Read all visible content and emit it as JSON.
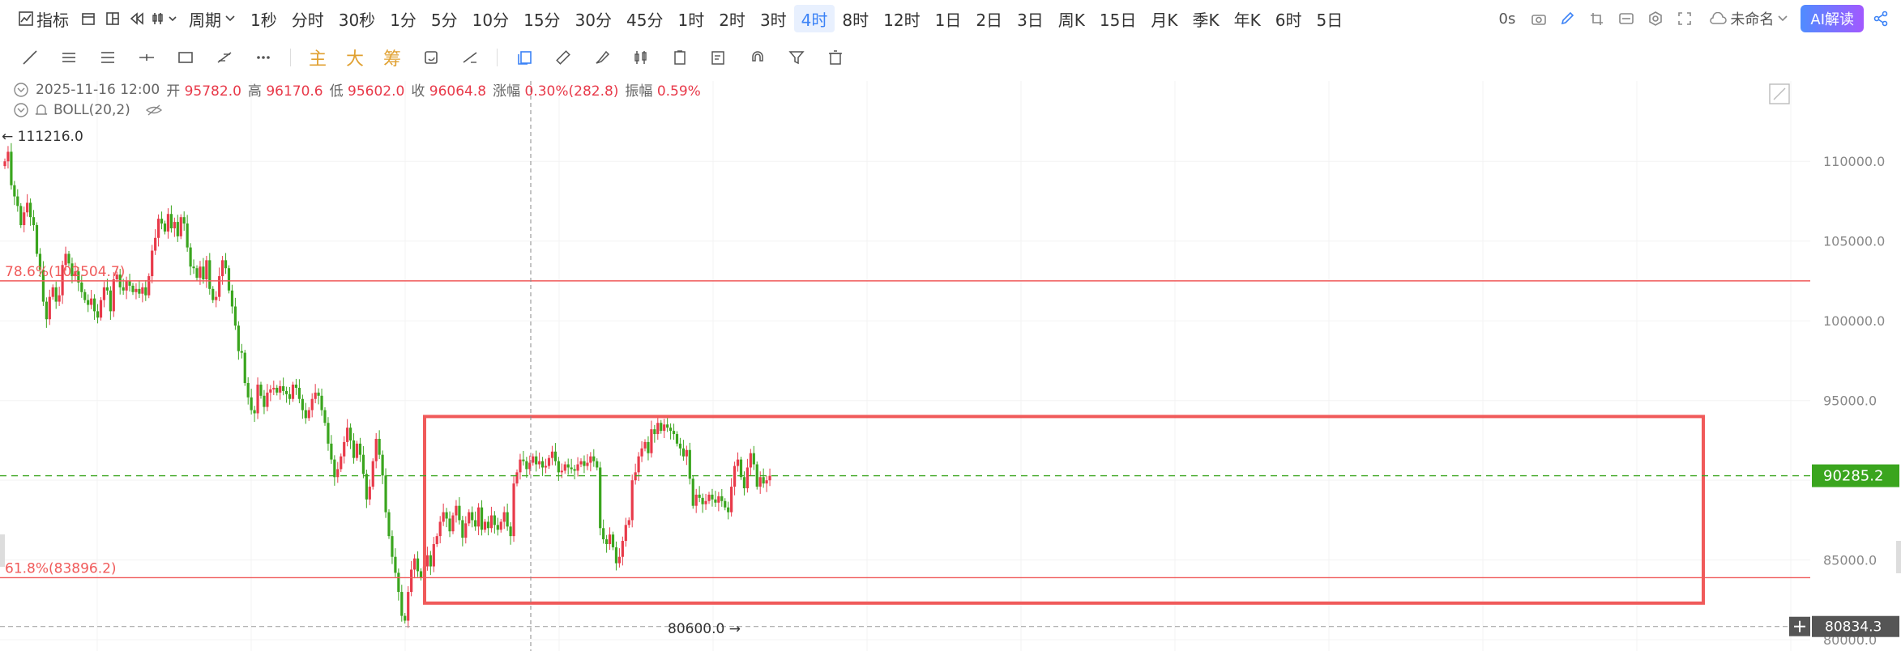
{
  "topbar": {
    "indicator_label": "指标",
    "period_label": "周期",
    "timeframes": [
      "1秒",
      "分时",
      "30秒",
      "1分",
      "5分",
      "10分",
      "15分",
      "30分",
      "45分",
      "1时",
      "2时",
      "3时",
      "4时",
      "8时",
      "12时",
      "1日",
      "2日",
      "3日",
      "周K",
      "15日",
      "月K",
      "季K",
      "年K",
      "6时",
      "5日"
    ],
    "active_timeframe": "4时",
    "latency": "0s",
    "workspace_name": "未命名",
    "ai_button": "AI解读"
  },
  "toolbar2": {
    "text_tools": [
      "主",
      "大",
      "筹"
    ]
  },
  "ohlc_info": {
    "datetime": "2025-11-16 12:00",
    "open_label": "开",
    "open": "95782.0",
    "high_label": "高",
    "high": "96170.6",
    "low_label": "低",
    "low": "95602.0",
    "close_label": "收",
    "close": "96064.8",
    "change_label": "涨幅",
    "change": "0.30%(282.8)",
    "amplitude_label": "振幅",
    "amplitude": "0.59%"
  },
  "indicator": {
    "label": "BOLL(20,2)"
  },
  "colors": {
    "up": "#e83a4a",
    "down": "#3aa51e",
    "fib_line": "#f05a5a",
    "box": "#f05a5a",
    "last_price_bg": "#3aa51e",
    "accent": "#3b82f6"
  },
  "chart_data": {
    "type": "candlestick",
    "ylim": [
      79500,
      112500
    ],
    "y_ticks": [
      "80000.0",
      "85000.0",
      "90000.0",
      "95000.0",
      "100000.0",
      "105000.0",
      "110000.0"
    ],
    "y_tick_values": [
      80000,
      85000,
      90000,
      95000,
      100000,
      105000,
      110000
    ],
    "high_marker": "111216.0",
    "low_marker": "80600.0",
    "last_price": 90285.2,
    "last_price_label": "90285.2",
    "crosshair_price": 80834.3,
    "crosshair_label": "80834.3",
    "fib_levels": [
      {
        "label": "78.6%(102504.7)",
        "value": 102504.7
      },
      {
        "label": "61.8%(83896.2)",
        "value": 83896.2
      }
    ],
    "range_box": {
      "top": 94000,
      "bottom": 82300
    },
    "closes": [
      110000,
      110600,
      108500,
      107800,
      107200,
      106000,
      106800,
      107400,
      106500,
      106000,
      104200,
      103200,
      101200,
      100100,
      101500,
      102100,
      101200,
      101600,
      103500,
      104200,
      103600,
      102800,
      103100,
      102400,
      101800,
      101300,
      101000,
      101400,
      100600,
      100200,
      101300,
      102100,
      101900,
      100600,
      102600,
      102900,
      102100,
      101900,
      102500,
      102200,
      101800,
      102000,
      101700,
      102100,
      101600,
      102800,
      104400,
      105200,
      106400,
      106100,
      105600,
      106700,
      105800,
      106200,
      105300,
      106500,
      106100,
      104600,
      103400,
      103300,
      102700,
      103400,
      102600,
      103800,
      102000,
      101300,
      101500,
      102800,
      103800,
      103300,
      101900,
      100900,
      99700,
      98100,
      98000,
      96100,
      95200,
      94400,
      94200,
      96000,
      95300,
      94600,
      95500,
      95700,
      95800,
      95500,
      95900,
      95600,
      95400,
      95100,
      96000,
      95800,
      95100,
      94400,
      93900,
      94400,
      95100,
      95500,
      95300,
      94400,
      93600,
      92300,
      91300,
      90200,
      90700,
      91500,
      92400,
      93300,
      92500,
      91400,
      92300,
      91600,
      90400,
      88800,
      89600,
      91200,
      92600,
      91600,
      90300,
      88000,
      86500,
      85200,
      84200,
      83000,
      81500,
      81200,
      83000,
      84400,
      85100,
      84300,
      83900,
      84600,
      85300,
      84600,
      86000,
      86500,
      87400,
      88000,
      87600,
      86800,
      87800,
      88400,
      87500,
      86400,
      87300,
      88000,
      87500,
      87100,
      88300,
      86900,
      87400,
      87000,
      87800,
      87200,
      86900,
      87400,
      88000,
      87100,
      86500,
      89800,
      90500,
      91300,
      91200,
      90700,
      91100,
      91500,
      91000,
      91200,
      90800,
      90900,
      91400,
      91800,
      91200,
      90500,
      90600,
      91000,
      90800,
      90700,
      90600,
      91000,
      91200,
      90900,
      91100,
      91500,
      91200,
      90800,
      87000,
      86300,
      86000,
      86600,
      85800,
      84800,
      85200,
      86200,
      87200,
      87500,
      90000,
      90500,
      91500,
      92000,
      92400,
      91700,
      93200,
      92900,
      93600,
      93100,
      93500,
      93300,
      93100,
      92900,
      92300,
      92000,
      91500,
      91900,
      90100,
      88400,
      89100,
      88900,
      88500,
      88700,
      89100,
      88800,
      88600,
      89000,
      88700,
      88300,
      88000,
      89600,
      90900,
      91300,
      90200,
      89500,
      90800,
      91700,
      91000,
      89600,
      90200,
      89800,
      90000,
      90285
    ]
  }
}
